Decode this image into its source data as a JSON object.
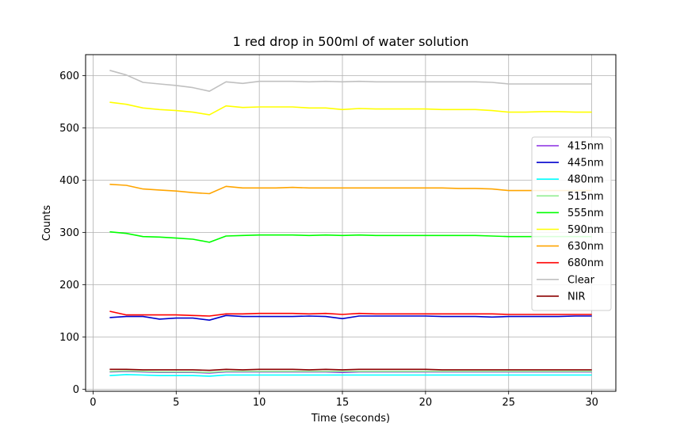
{
  "chart_data": {
    "type": "line",
    "title": "1 red drop in 500ml of water solution",
    "xlabel": "Time (seconds)",
    "ylabel": "Counts",
    "xlim": [
      -0.45,
      31.45
    ],
    "ylim": [
      -4,
      640
    ],
    "xticks": [
      0,
      5,
      10,
      15,
      20,
      25,
      30
    ],
    "yticks": [
      0,
      100,
      200,
      300,
      400,
      500,
      600
    ],
    "xtick_labels": [
      "0",
      "5",
      "10",
      "15",
      "20",
      "25",
      "30"
    ],
    "ytick_labels": [
      "0",
      "100",
      "200",
      "300",
      "400",
      "500",
      "600"
    ],
    "grid": true,
    "legend_position": "center-right",
    "x": [
      1,
      2,
      3,
      4,
      5,
      6,
      7,
      8,
      9,
      10,
      11,
      12,
      13,
      14,
      15,
      16,
      17,
      18,
      19,
      20,
      21,
      22,
      23,
      24,
      25,
      26,
      27,
      28,
      29,
      30
    ],
    "series": [
      {
        "name": "415nm",
        "color": "#8a2be2",
        "values": [
          33,
          34,
          33,
          32,
          32,
          32,
          31,
          33,
          33,
          33,
          33,
          33,
          33,
          33,
          32,
          33,
          33,
          33,
          33,
          33,
          33,
          33,
          33,
          33,
          33,
          33,
          33,
          33,
          33,
          33
        ]
      },
      {
        "name": "445nm",
        "color": "#0000cd",
        "values": [
          137,
          139,
          139,
          134,
          136,
          136,
          132,
          141,
          139,
          139,
          139,
          139,
          140,
          139,
          135,
          140,
          140,
          140,
          140,
          140,
          139,
          139,
          139,
          138,
          139,
          139,
          139,
          139,
          140,
          140
        ]
      },
      {
        "name": "480nm",
        "color": "#00ffff",
        "values": [
          26,
          28,
          27,
          26,
          26,
          26,
          25,
          27,
          27,
          27,
          27,
          27,
          27,
          27,
          27,
          27,
          27,
          27,
          27,
          27,
          27,
          27,
          27,
          27,
          27,
          27,
          27,
          27,
          27,
          27
        ]
      },
      {
        "name": "515nm",
        "color": "#90ee90",
        "values": [
          34,
          35,
          34,
          33,
          33,
          33,
          32,
          34,
          34,
          34,
          34,
          34,
          34,
          34,
          34,
          34,
          34,
          34,
          34,
          34,
          34,
          34,
          34,
          34,
          34,
          34,
          34,
          34,
          34,
          34
        ]
      },
      {
        "name": "555nm",
        "color": "#00ff00",
        "values": [
          301,
          298,
          292,
          291,
          289,
          287,
          281,
          293,
          294,
          295,
          295,
          295,
          294,
          295,
          294,
          295,
          294,
          294,
          294,
          294,
          294,
          294,
          294,
          293,
          292,
          292,
          292,
          292,
          292,
          292
        ]
      },
      {
        "name": "590nm",
        "color": "#ffff00",
        "values": [
          549,
          545,
          538,
          535,
          533,
          530,
          525,
          542,
          539,
          540,
          540,
          540,
          538,
          538,
          535,
          537,
          536,
          536,
          536,
          536,
          535,
          535,
          535,
          533,
          530,
          530,
          531,
          531,
          530,
          530
        ]
      },
      {
        "name": "630nm",
        "color": "#ffa500",
        "values": [
          392,
          390,
          383,
          381,
          379,
          376,
          374,
          388,
          385,
          385,
          385,
          386,
          385,
          385,
          385,
          385,
          385,
          385,
          385,
          385,
          385,
          384,
          384,
          383,
          380,
          380,
          380,
          380,
          380,
          380
        ]
      },
      {
        "name": "680nm",
        "color": "#ff0000",
        "values": [
          149,
          142,
          142,
          142,
          142,
          141,
          140,
          144,
          144,
          145,
          145,
          145,
          144,
          145,
          143,
          145,
          144,
          144,
          144,
          144,
          144,
          144,
          144,
          144,
          143,
          143,
          143,
          143,
          143,
          143
        ]
      },
      {
        "name": "Clear",
        "color": "#c0c0c0",
        "values": [
          610,
          601,
          587,
          584,
          581,
          577,
          570,
          588,
          585,
          589,
          589,
          589,
          588,
          589,
          588,
          589,
          588,
          588,
          588,
          588,
          588,
          588,
          588,
          587,
          584,
          584,
          584,
          584,
          584,
          584
        ]
      },
      {
        "name": "NIR",
        "color": "#8b0000",
        "values": [
          38,
          38,
          37,
          37,
          37,
          37,
          36,
          38,
          37,
          38,
          38,
          38,
          37,
          38,
          37,
          38,
          38,
          38,
          38,
          38,
          37,
          37,
          37,
          37,
          37,
          37,
          37,
          37,
          37,
          37
        ]
      }
    ]
  }
}
